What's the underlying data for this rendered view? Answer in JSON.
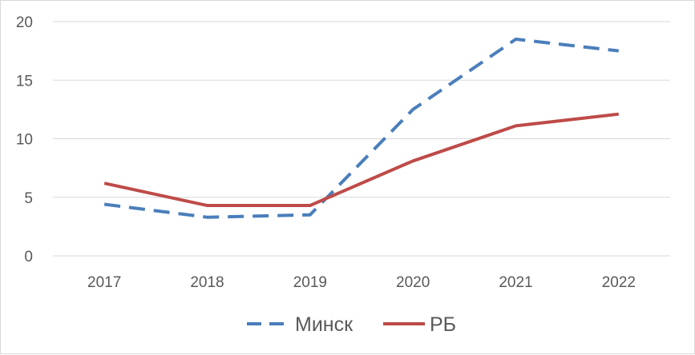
{
  "chart_data": {
    "type": "line",
    "categories": [
      "2017",
      "2018",
      "2019",
      "2020",
      "2021",
      "2022"
    ],
    "series": [
      {
        "name": "Минск",
        "values": [
          4.4,
          3.3,
          3.5,
          12.5,
          18.5,
          17.5
        ],
        "color": "#4a7ebb",
        "dash": "dashed"
      },
      {
        "name": "РБ",
        "values": [
          6.2,
          4.3,
          4.3,
          8.1,
          11.1,
          12.1
        ],
        "color": "#be4b48",
        "dash": "solid"
      }
    ],
    "y_ticks": [
      "0",
      "5",
      "10",
      "15",
      "20"
    ],
    "ylim": [
      0,
      20
    ],
    "grid": true,
    "legend_position": "bottom"
  }
}
